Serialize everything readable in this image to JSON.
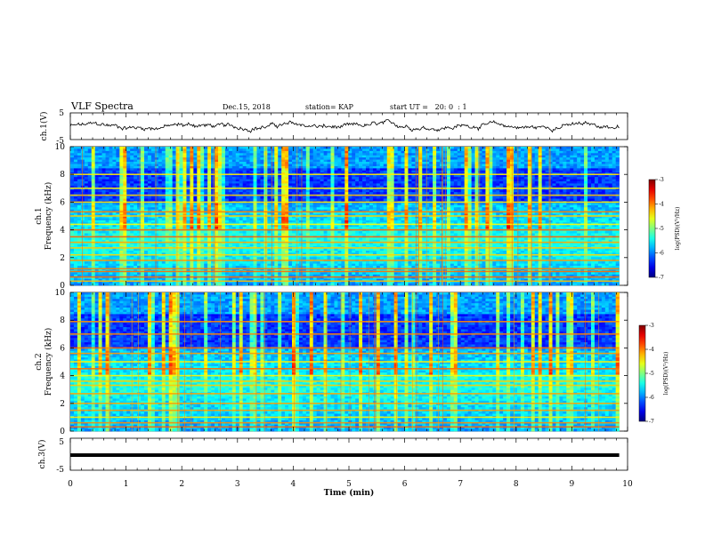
{
  "chart_data": {
    "type": "heatmap",
    "header": {
      "title": "VLF Spectra",
      "date": "Dec.15, 2018",
      "station": "station= KAP",
      "start": "start UT =   20: 0  : 1"
    },
    "x_axis": {
      "label": "Time (min)",
      "range": [
        0,
        10
      ],
      "ticks": [
        "0",
        "1",
        "2",
        "3",
        "4",
        "5",
        "6",
        "7",
        "8",
        "9",
        "10"
      ]
    },
    "panels": [
      {
        "id": "ch1-waveform",
        "ylabel": "ch.1(V)",
        "type": "line",
        "ylim": [
          -5,
          5
        ],
        "yticks": [
          "5",
          "-5"
        ],
        "note": ""
      },
      {
        "id": "ch1-spectrogram",
        "ylabel_line1": "ch.1",
        "ylabel_line2": "Frequency (kHz)",
        "type": "heatmap",
        "ylim": [
          0,
          10
        ],
        "yticks": [
          "0",
          "2",
          "4",
          "6",
          "8",
          "10"
        ],
        "colorbar": {
          "label": "log(PSD)(V²/Hz)",
          "range": [
            -7,
            -3
          ],
          "ticks": [
            "-3",
            "-4",
            "-5",
            "-6",
            "-7"
          ],
          "colormap": "jet"
        },
        "bands_khz": [
          0.3,
          0.6,
          1.0,
          1.2,
          1.8,
          2.2,
          2.7,
          3.1,
          3.5,
          4.0,
          4.4,
          5.0,
          5.3,
          6.0,
          6.5,
          7.0,
          8.0
        ]
      },
      {
        "id": "ch2-spectrogram",
        "ylabel_line1": "ch.2",
        "ylabel_line2": "Frequency (kHz)",
        "type": "heatmap",
        "ylim": [
          0,
          10
        ],
        "yticks": [
          "0",
          "2",
          "4",
          "6",
          "8",
          "10"
        ],
        "colorbar": {
          "label": "log(PSD)(V²/Hz)",
          "range": [
            -7,
            -3
          ],
          "ticks": [
            "-3",
            "-4",
            "-5",
            "-6",
            "-7"
          ],
          "colormap": "jet"
        },
        "bands_khz": [
          0.3,
          0.6,
          1.0,
          1.5,
          2.0,
          2.7,
          3.3,
          3.6,
          4.0,
          4.5,
          5.0,
          5.6,
          6.0,
          7.0,
          7.9
        ]
      },
      {
        "id": "ch3-waveform",
        "ylabel": "ch.3(V)",
        "type": "line",
        "ylim": [
          -5,
          5
        ],
        "yticks": [
          "5",
          "-5"
        ],
        "constant_value": 0
      }
    ],
    "data_end_min": 9.85
  }
}
